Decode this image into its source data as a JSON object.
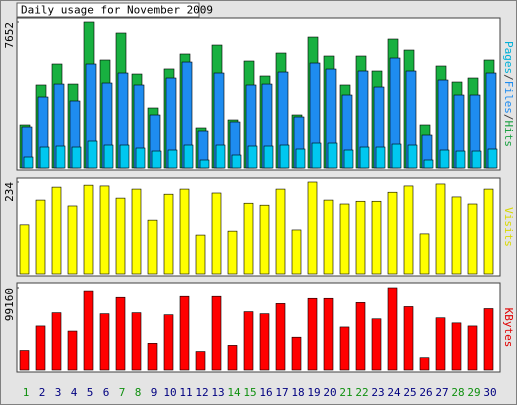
{
  "title": "Daily usage for November 2009",
  "chart_data": [
    {
      "type": "bar",
      "label_separator": "/",
      "ylim": [
        0,
        7652
      ],
      "yticks": [
        7652
      ],
      "series": [
        {
          "name": "Pages",
          "color": "#00c8f0",
          "label_color": "#00b0d8",
          "values": [
            576,
            1100,
            1153,
            1100,
            1415,
            1205,
            1205,
            1048,
            890,
            943,
            1205,
            419,
            1205,
            681,
            1153,
            1153,
            1205,
            996,
            1310,
            1310,
            943,
            1100,
            1100,
            1257,
            1205,
            419,
            943,
            890,
            890,
            996
          ]
        },
        {
          "name": "Files",
          "color": "#1e8cf0",
          "label_color": "#1e8cf0",
          "values": [
            2148,
            3720,
            4400,
            3511,
            5450,
            4454,
            4978,
            4350,
            2777,
            4716,
            5554,
            1939,
            4978,
            2410,
            4350,
            4400,
            5030,
            2672,
            5502,
            5187,
            3825,
            5083,
            4244,
            5764,
            5083,
            1729,
            4611,
            3825,
            3825,
            4978
          ]
        },
        {
          "name": "Hits",
          "color": "#18b040",
          "label_color": "#18a040",
          "values": [
            2253,
            4350,
            5450,
            4400,
            7652,
            5660,
            7075,
            4925,
            3144,
            5190,
            5975,
            2096,
            6445,
            2515,
            5607,
            4821,
            6026,
            2777,
            6864,
            5869,
            4350,
            5869,
            5083,
            6760,
            6183,
            2253,
            5345,
            4506,
            4716,
            5660
          ]
        }
      ]
    },
    {
      "type": "bar",
      "ylim": [
        0,
        234
      ],
      "yticks": [
        234
      ],
      "series": [
        {
          "name": "Visits",
          "color": "#ffff00",
          "label_color": "#d8d800",
          "values": [
            125,
            188,
            221,
            173,
            226,
            224,
            193,
            216,
            137,
            203,
            216,
            99,
            206,
            109,
            180,
            175,
            216,
            112,
            234,
            188,
            178,
            185,
            185,
            208,
            224,
            102,
            229,
            196,
            178,
            216
          ]
        }
      ]
    },
    {
      "type": "bar",
      "ylim": [
        0,
        99160
      ],
      "yticks": [
        99160
      ],
      "series": [
        {
          "name": "KBytes",
          "color": "#ff0000",
          "label_color": "#e00000",
          "values": [
            23550,
            53300,
            69400,
            47100,
            95440,
            68170,
            88000,
            69400,
            32230,
            66930,
            89240,
            22310,
            89240,
            29750,
            70650,
            68170,
            80570,
            39660,
            86760,
            86760,
            52060,
            81800,
            61970,
            99160,
            76850,
            14870,
            63210,
            57020,
            53300,
            74370
          ]
        }
      ],
      "categories": [
        "1",
        "2",
        "3",
        "4",
        "5",
        "6",
        "7",
        "8",
        "9",
        "10",
        "11",
        "12",
        "13",
        "14",
        "15",
        "16",
        "17",
        "18",
        "19",
        "20",
        "21",
        "22",
        "23",
        "24",
        "25",
        "26",
        "27",
        "28",
        "29",
        "30"
      ],
      "category_colors": [
        "#109010",
        "#000080",
        "#000080",
        "#000080",
        "#000080",
        "#000080",
        "#109010",
        "#109010",
        "#000080",
        "#000080",
        "#000080",
        "#000080",
        "#000080",
        "#109010",
        "#109010",
        "#000080",
        "#000080",
        "#000080",
        "#000080",
        "#000080",
        "#109010",
        "#109010",
        "#000080",
        "#000080",
        "#000080",
        "#000080",
        "#000080",
        "#109010",
        "#109010",
        "#000080"
      ]
    }
  ]
}
